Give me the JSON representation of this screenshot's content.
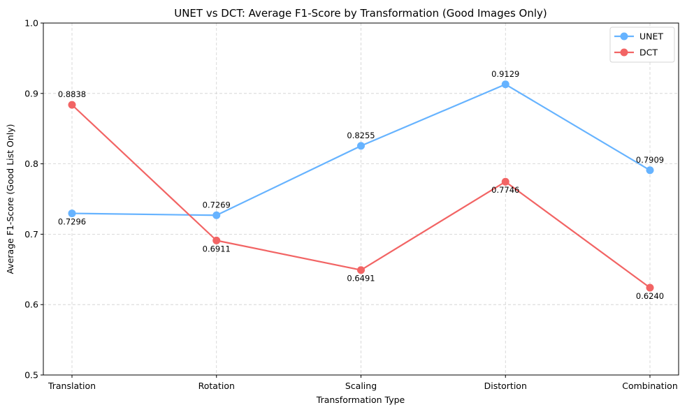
{
  "chart_data": {
    "type": "line",
    "title": "UNET vs DCT: Average F1-Score by Transformation (Good Images Only)",
    "xlabel": "Transformation Type",
    "ylabel": "Average F1-Score (Good List Only)",
    "categories": [
      "Translation",
      "Rotation",
      "Scaling",
      "Distortion",
      "Combination"
    ],
    "ylim": [
      0.5,
      1.0
    ],
    "yticks": [
      0.5,
      0.6,
      0.7,
      0.8,
      0.9,
      1.0
    ],
    "ytick_labels": [
      "0.5",
      "0.6",
      "0.7",
      "0.8",
      "0.9",
      "1.0"
    ],
    "grid": true,
    "legend_position": "top-right",
    "series": [
      {
        "name": "UNET",
        "color": "#66b3ff",
        "values": [
          0.7296,
          0.7269,
          0.8255,
          0.9129,
          0.7909
        ],
        "labels": [
          "0.7296",
          "0.7269",
          "0.8255",
          "0.9129",
          "0.7909"
        ]
      },
      {
        "name": "DCT",
        "color": "#f26464",
        "values": [
          0.8838,
          0.6911,
          0.6491,
          0.7746,
          0.624
        ],
        "labels": [
          "0.8838",
          "0.6911",
          "0.6491",
          "0.7746",
          "0.6240"
        ]
      }
    ]
  }
}
